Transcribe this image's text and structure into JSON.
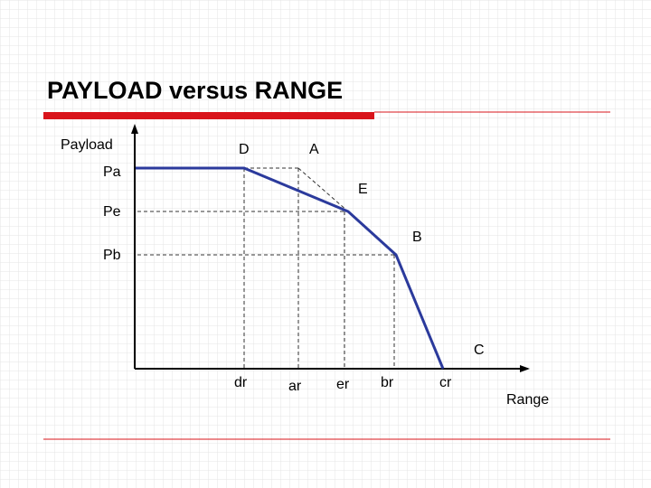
{
  "title": "PAYLOAD versus RANGE",
  "axes": {
    "y_label": "Payload",
    "x_label": "Range"
  },
  "points": [
    {
      "label": "D"
    },
    {
      "label": "A"
    },
    {
      "label": "E"
    },
    {
      "label": "B"
    },
    {
      "label": "C"
    }
  ],
  "y_ticks": [
    "Pa",
    "Pe",
    "Pb"
  ],
  "x_ticks": [
    "dr",
    "ar",
    "er",
    "br",
    "cr"
  ]
}
